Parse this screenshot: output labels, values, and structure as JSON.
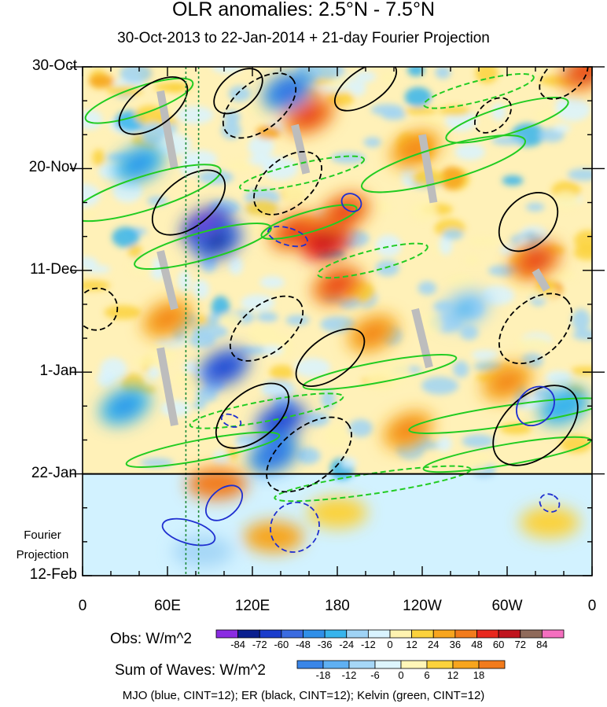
{
  "chart_data": {
    "type": "heatmap",
    "title": "OLR anomalies: 2.5°N - 7.5°N",
    "subtitle": "30-Oct-2013 to 22-Jan-2014 + 21-day Fourier Projection",
    "x_tick_labels": [
      "0",
      "60E",
      "120E",
      "180",
      "120W",
      "60W",
      "0"
    ],
    "x_tick_lon": [
      0,
      60,
      120,
      180,
      240,
      300,
      360
    ],
    "y_tick_labels": [
      "30-Oct",
      "20-Nov",
      "11-Dec",
      "1-Jan",
      "22-Jan",
      "12-Feb"
    ],
    "y_tick_day": [
      0,
      21,
      42,
      63,
      84,
      105
    ],
    "projection_start_day": 84,
    "projection_label": [
      "Fourier",
      "Projection"
    ],
    "obs_colorbar": {
      "label": "Obs: W/m^2",
      "levels": [
        -84,
        -72,
        -60,
        -48,
        -36,
        -24,
        -12,
        0,
        12,
        24,
        36,
        48,
        60,
        72,
        84
      ],
      "colors": [
        "#8a2be2",
        "#0a1f8f",
        "#1a3ccc",
        "#3a6be0",
        "#2f8fe8",
        "#37b4ec",
        "#9fd3f5",
        "#d9f3ff",
        "#fff3b0",
        "#fbd23c",
        "#f7a51e",
        "#f27b1c",
        "#e8281e",
        "#c0141e",
        "#8f6a5a",
        "#f46fbf"
      ]
    },
    "waves_colorbar": {
      "label": "Sum of Waves: W/m^2",
      "levels": [
        -18,
        -12,
        -6,
        0,
        6,
        12,
        18
      ],
      "colors": [
        "#3a86e8",
        "#5fb0f2",
        "#a6d7f7",
        "#ddf5fd",
        "#fff6b8",
        "#fbd23c",
        "#f7a51e",
        "#f27b1c"
      ]
    },
    "legend_caption": "MJO (blue, CINT=12); ER (black, CINT=12); Kelvin (green, CINT=12)",
    "wave_colors": {
      "MJO": "#1f2fd0",
      "ER": "#000000",
      "Kelvin": "#22cc22",
      "reference_line": "#1e8a3a"
    },
    "reference_lines_lon": [
      73,
      82
    ],
    "obs_field": {
      "note": "approximate anomaly centers (lon in degrees east, day from 30-Oct, value W/m^2)",
      "blobs": [
        {
          "lon": 88,
          "day": 33,
          "value": -70
        },
        {
          "lon": 95,
          "day": 36,
          "value": -60
        },
        {
          "lon": 100,
          "day": 62,
          "value": -50
        },
        {
          "lon": 140,
          "day": 73,
          "value": -55
        },
        {
          "lon": 135,
          "day": 80,
          "value": -40
        },
        {
          "lon": 150,
          "day": 34,
          "value": 40
        },
        {
          "lon": 172,
          "day": 36,
          "value": 55
        },
        {
          "lon": 185,
          "day": 30,
          "value": 45
        },
        {
          "lon": 160,
          "day": 10,
          "value": 40
        },
        {
          "lon": 145,
          "day": 5,
          "value": -45
        },
        {
          "lon": 40,
          "day": 20,
          "value": -35
        },
        {
          "lon": 30,
          "day": 70,
          "value": -30
        },
        {
          "lon": 205,
          "day": 55,
          "value": 35
        },
        {
          "lon": 180,
          "day": 45,
          "value": 45
        },
        {
          "lon": 320,
          "day": 40,
          "value": 40
        },
        {
          "lon": 340,
          "day": 70,
          "value": -25
        },
        {
          "lon": 300,
          "day": 65,
          "value": 30
        },
        {
          "lon": 235,
          "day": 17,
          "value": 30
        },
        {
          "lon": 270,
          "day": 50,
          "value": -20
        },
        {
          "lon": 60,
          "day": 52,
          "value": 30
        },
        {
          "lon": 355,
          "day": 1,
          "value": 40
        },
        {
          "lon": 230,
          "day": 75,
          "value": 35
        }
      ]
    },
    "projection_field": {
      "blobs": [
        {
          "lon": 95,
          "day": 86,
          "value": 18
        },
        {
          "lon": 135,
          "day": 97,
          "value": 12
        },
        {
          "lon": 85,
          "day": 100,
          "value": -12
        },
        {
          "lon": 180,
          "day": 92,
          "value": 6
        },
        {
          "lon": 330,
          "day": 94,
          "value": 6
        }
      ]
    },
    "waves": {
      "ER": [
        {
          "lon": 50,
          "day": 8,
          "dlon": 28,
          "dday": 12
        },
        {
          "lon": 125,
          "day": 8,
          "dlon": 30,
          "dday": 14
        },
        {
          "lon": 200,
          "day": 4,
          "dlon": 25,
          "dday": 10
        },
        {
          "lon": 340,
          "day": 2,
          "dlon": 20,
          "dday": 10
        },
        {
          "lon": 75,
          "day": 28,
          "dlon": 30,
          "dday": 14
        },
        {
          "lon": 145,
          "day": 24,
          "dlon": 28,
          "dday": 14
        },
        {
          "lon": 315,
          "day": 32,
          "dlon": 24,
          "dday": 14
        },
        {
          "lon": 130,
          "day": 54,
          "dlon": 30,
          "dday": 14
        },
        {
          "lon": 175,
          "day": 60,
          "dlon": 28,
          "dday": 12
        },
        {
          "lon": 320,
          "day": 54,
          "dlon": 30,
          "dday": 16
        },
        {
          "lon": 120,
          "day": 72,
          "dlon": 30,
          "dday": 14
        },
        {
          "lon": 160,
          "day": 80,
          "dlon": 35,
          "dday": 16
        },
        {
          "lon": 320,
          "day": 74,
          "dlon": 35,
          "dday": 18
        },
        {
          "lon": 10,
          "day": 50,
          "dlon": 15,
          "dday": 12
        },
        {
          "lon": 110,
          "day": 5,
          "dlon": 20,
          "dday": 10
        },
        {
          "lon": 290,
          "day": 10,
          "dlon": 15,
          "dday": 8
        }
      ],
      "MJO": [
        {
          "lon": 75,
          "day": 96,
          "dlon": 8,
          "dday": 16
        },
        {
          "lon": 150,
          "day": 95,
          "dlon": 18,
          "dday": 14
        },
        {
          "lon": 100,
          "day": 90,
          "dlon": 15,
          "dday": 8
        },
        {
          "lon": 145,
          "day": 35,
          "dlon": 6,
          "dday": 12
        },
        {
          "lon": 190,
          "day": 28,
          "dlon": 6,
          "dday": 6
        },
        {
          "lon": 330,
          "day": 90,
          "dlon": 6,
          "dday": 6
        },
        {
          "lon": 320,
          "day": 70,
          "dlon": 15,
          "dday": 10
        },
        {
          "lon": 105,
          "day": 73,
          "dlon": 4,
          "dday": 6
        }
      ],
      "Kelvin": [
        {
          "lon": 40,
          "day": 7,
          "dlon": 40,
          "dday": 4
        },
        {
          "lon": 280,
          "day": 5,
          "dlon": 40,
          "dday": 3
        },
        {
          "lon": 300,
          "day": 11,
          "dlon": 45,
          "dday": 4
        },
        {
          "lon": 45,
          "day": 26,
          "dlon": 55,
          "dday": 5
        },
        {
          "lon": 155,
          "day": 22,
          "dlon": 45,
          "dday": 3
        },
        {
          "lon": 255,
          "day": 20,
          "dlon": 60,
          "dday": 5
        },
        {
          "lon": 85,
          "day": 37,
          "dlon": 50,
          "dday": 4
        },
        {
          "lon": 205,
          "day": 40,
          "dlon": 40,
          "dday": 3
        },
        {
          "lon": 160,
          "day": 32,
          "dlon": 35,
          "dday": 3
        },
        {
          "lon": 210,
          "day": 63,
          "dlon": 55,
          "dday": 3
        },
        {
          "lon": 130,
          "day": 71,
          "dlon": 55,
          "dday": 3
        },
        {
          "lon": 300,
          "day": 72,
          "dlon": 70,
          "dday": 3
        },
        {
          "lon": 85,
          "day": 79,
          "dlon": 55,
          "dday": 3
        },
        {
          "lon": 205,
          "day": 86,
          "dlon": 70,
          "dday": 3
        },
        {
          "lon": 300,
          "day": 80,
          "dlon": 60,
          "dday": 3
        }
      ]
    },
    "missing_data_streaks": [
      {
        "lon": 55,
        "day": 5,
        "dlon": 10,
        "dday": 16
      },
      {
        "lon": 240,
        "day": 14,
        "dlon": 8,
        "dday": 14
      },
      {
        "lon": 55,
        "day": 38,
        "dlon": 10,
        "dday": 12
      },
      {
        "lon": 55,
        "day": 58,
        "dlon": 10,
        "dday": 16
      },
      {
        "lon": 235,
        "day": 50,
        "dlon": 10,
        "dday": 12
      },
      {
        "lon": 150,
        "day": 12,
        "dlon": 8,
        "dday": 10
      },
      {
        "lon": 320,
        "day": 42,
        "dlon": 8,
        "dday": 4
      }
    ]
  }
}
